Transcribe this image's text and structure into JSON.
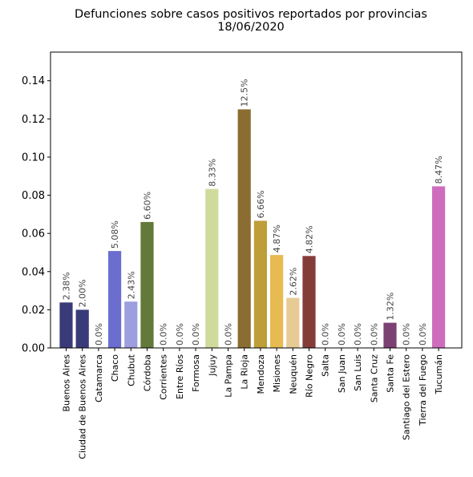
{
  "chart_data": {
    "type": "bar",
    "title": "Defunciones sobre casos positivos reportados por provincias",
    "subtitle": "18/06/2020",
    "xlabel": "",
    "ylabel": "",
    "ylim": [
      0,
      0.155
    ],
    "yticks": [
      "0.00",
      "0.02",
      "0.04",
      "0.06",
      "0.08",
      "0.10",
      "0.12",
      "0.14"
    ],
    "grid": false,
    "categories": [
      "Buenos Aires",
      "Ciudad de Buenos Aires",
      "Catamarca",
      "Chaco",
      "Chubut",
      "Córdoba",
      "Corrientes",
      "Entre Ríos",
      "Formosa",
      "Jujuy",
      "La Pampa",
      "La Rioja",
      "Mendoza",
      "Misiones",
      "Neuquén",
      "Río Negro",
      "Salta",
      "San Juan",
      "San Luis",
      "Santa Cruz",
      "Santa Fe",
      "Santiago del Estero",
      "Tierra del Fuego",
      "Tucumán"
    ],
    "values": [
      0.0238,
      0.02,
      0.0,
      0.0508,
      0.0243,
      0.066,
      0.0,
      0.0,
      0.0,
      0.0833,
      0.0,
      0.125,
      0.0666,
      0.0487,
      0.0262,
      0.0482,
      0.0,
      0.0,
      0.0,
      0.0,
      0.0132,
      0.0,
      0.0,
      0.0847
    ],
    "value_labels": [
      "2.38%",
      "2.00%",
      "0.0%",
      "5.08%",
      "2.43%",
      "6.60%",
      "0.0%",
      "0.0%",
      "0.0%",
      "8.33%",
      "0.0%",
      "12.5%",
      "6.66%",
      "4.87%",
      "2.62%",
      "4.82%",
      "0.0%",
      "0.0%",
      "0.0%",
      "0.0%",
      "1.32%",
      "0.0%",
      "0.0%",
      "8.47%"
    ],
    "colors": [
      "#393b79",
      "#393b79",
      "#5254a3",
      "#6b6ecf",
      "#9c9ede",
      "#637939",
      "#8ca252",
      "#b5cf6b",
      "#b5cf6b",
      "#cedb9c",
      "#8c6d31",
      "#8c6d31",
      "#bd9e39",
      "#e7ba52",
      "#e7cb94",
      "#843c39",
      "#ad494a",
      "#d6616b",
      "#e7969c",
      "#7b4173",
      "#7b4173",
      "#a55194",
      "#ce6dbd",
      "#ce6dbd"
    ]
  }
}
